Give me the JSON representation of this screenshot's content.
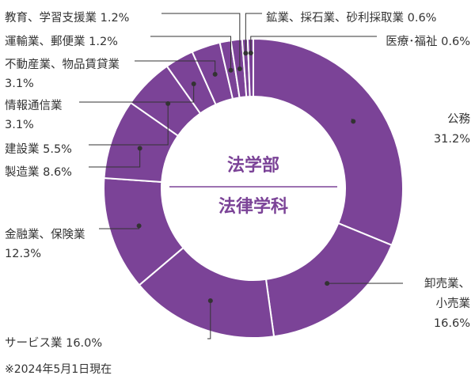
{
  "chart_data": {
    "type": "pie",
    "center_label": {
      "line1": "法学部",
      "line2": "法律学科"
    },
    "slices": [
      {
        "label": "公務",
        "value": 31.2,
        "text": "31.2%",
        "lines": [
          "公務",
          "31.2%"
        ]
      },
      {
        "label": "卸売業、小売業",
        "value": 16.6,
        "text": "16.6%",
        "lines": [
          "卸売業、",
          "小売業",
          "16.6%"
        ]
      },
      {
        "label": "サービス業",
        "value": 16.0,
        "text": "16.0%",
        "lines": [
          "サービス業 16.0%"
        ]
      },
      {
        "label": "金融業、保険業",
        "value": 12.3,
        "text": "12.3%",
        "lines": [
          "金融業、保険業",
          "12.3%"
        ]
      },
      {
        "label": "製造業",
        "value": 8.6,
        "text": "8.6%",
        "lines": [
          "製造業 8.6%"
        ]
      },
      {
        "label": "建設業",
        "value": 5.5,
        "text": "5.5%",
        "lines": [
          "建設業 5.5%"
        ]
      },
      {
        "label": "情報通信業",
        "value": 3.1,
        "text": "3.1%",
        "lines": [
          "情報通信業",
          "3.1%"
        ]
      },
      {
        "label": "不動産業、物品賃貸業",
        "value": 3.1,
        "text": "3.1%",
        "lines": [
          "不動産業、物品賃貸業",
          "3.1%"
        ]
      },
      {
        "label": "運輸業、郵便業",
        "value": 1.2,
        "text": "1.2%",
        "lines": [
          "運輸業、郵便業 1.2%"
        ]
      },
      {
        "label": "教育、学習支援業",
        "value": 1.2,
        "text": "1.2%",
        "lines": [
          "教育、学習支援業 1.2%"
        ]
      },
      {
        "label": "鉱業、採石業、砂利採取業",
        "value": 0.6,
        "text": "0.6%",
        "lines": [
          "鉱業、採石業、砂利採取業 0.6%"
        ]
      },
      {
        "label": "医療・福祉",
        "value": 0.6,
        "text": "0.6%",
        "lines": [
          "医療･福祉 0.6%"
        ]
      }
    ],
    "colors": {
      "slice": "#7b4397",
      "edge": "#ffffff",
      "center_text": "#7b4397",
      "leader": "#333333"
    }
  },
  "footnote": "※2024年5月1日現在"
}
